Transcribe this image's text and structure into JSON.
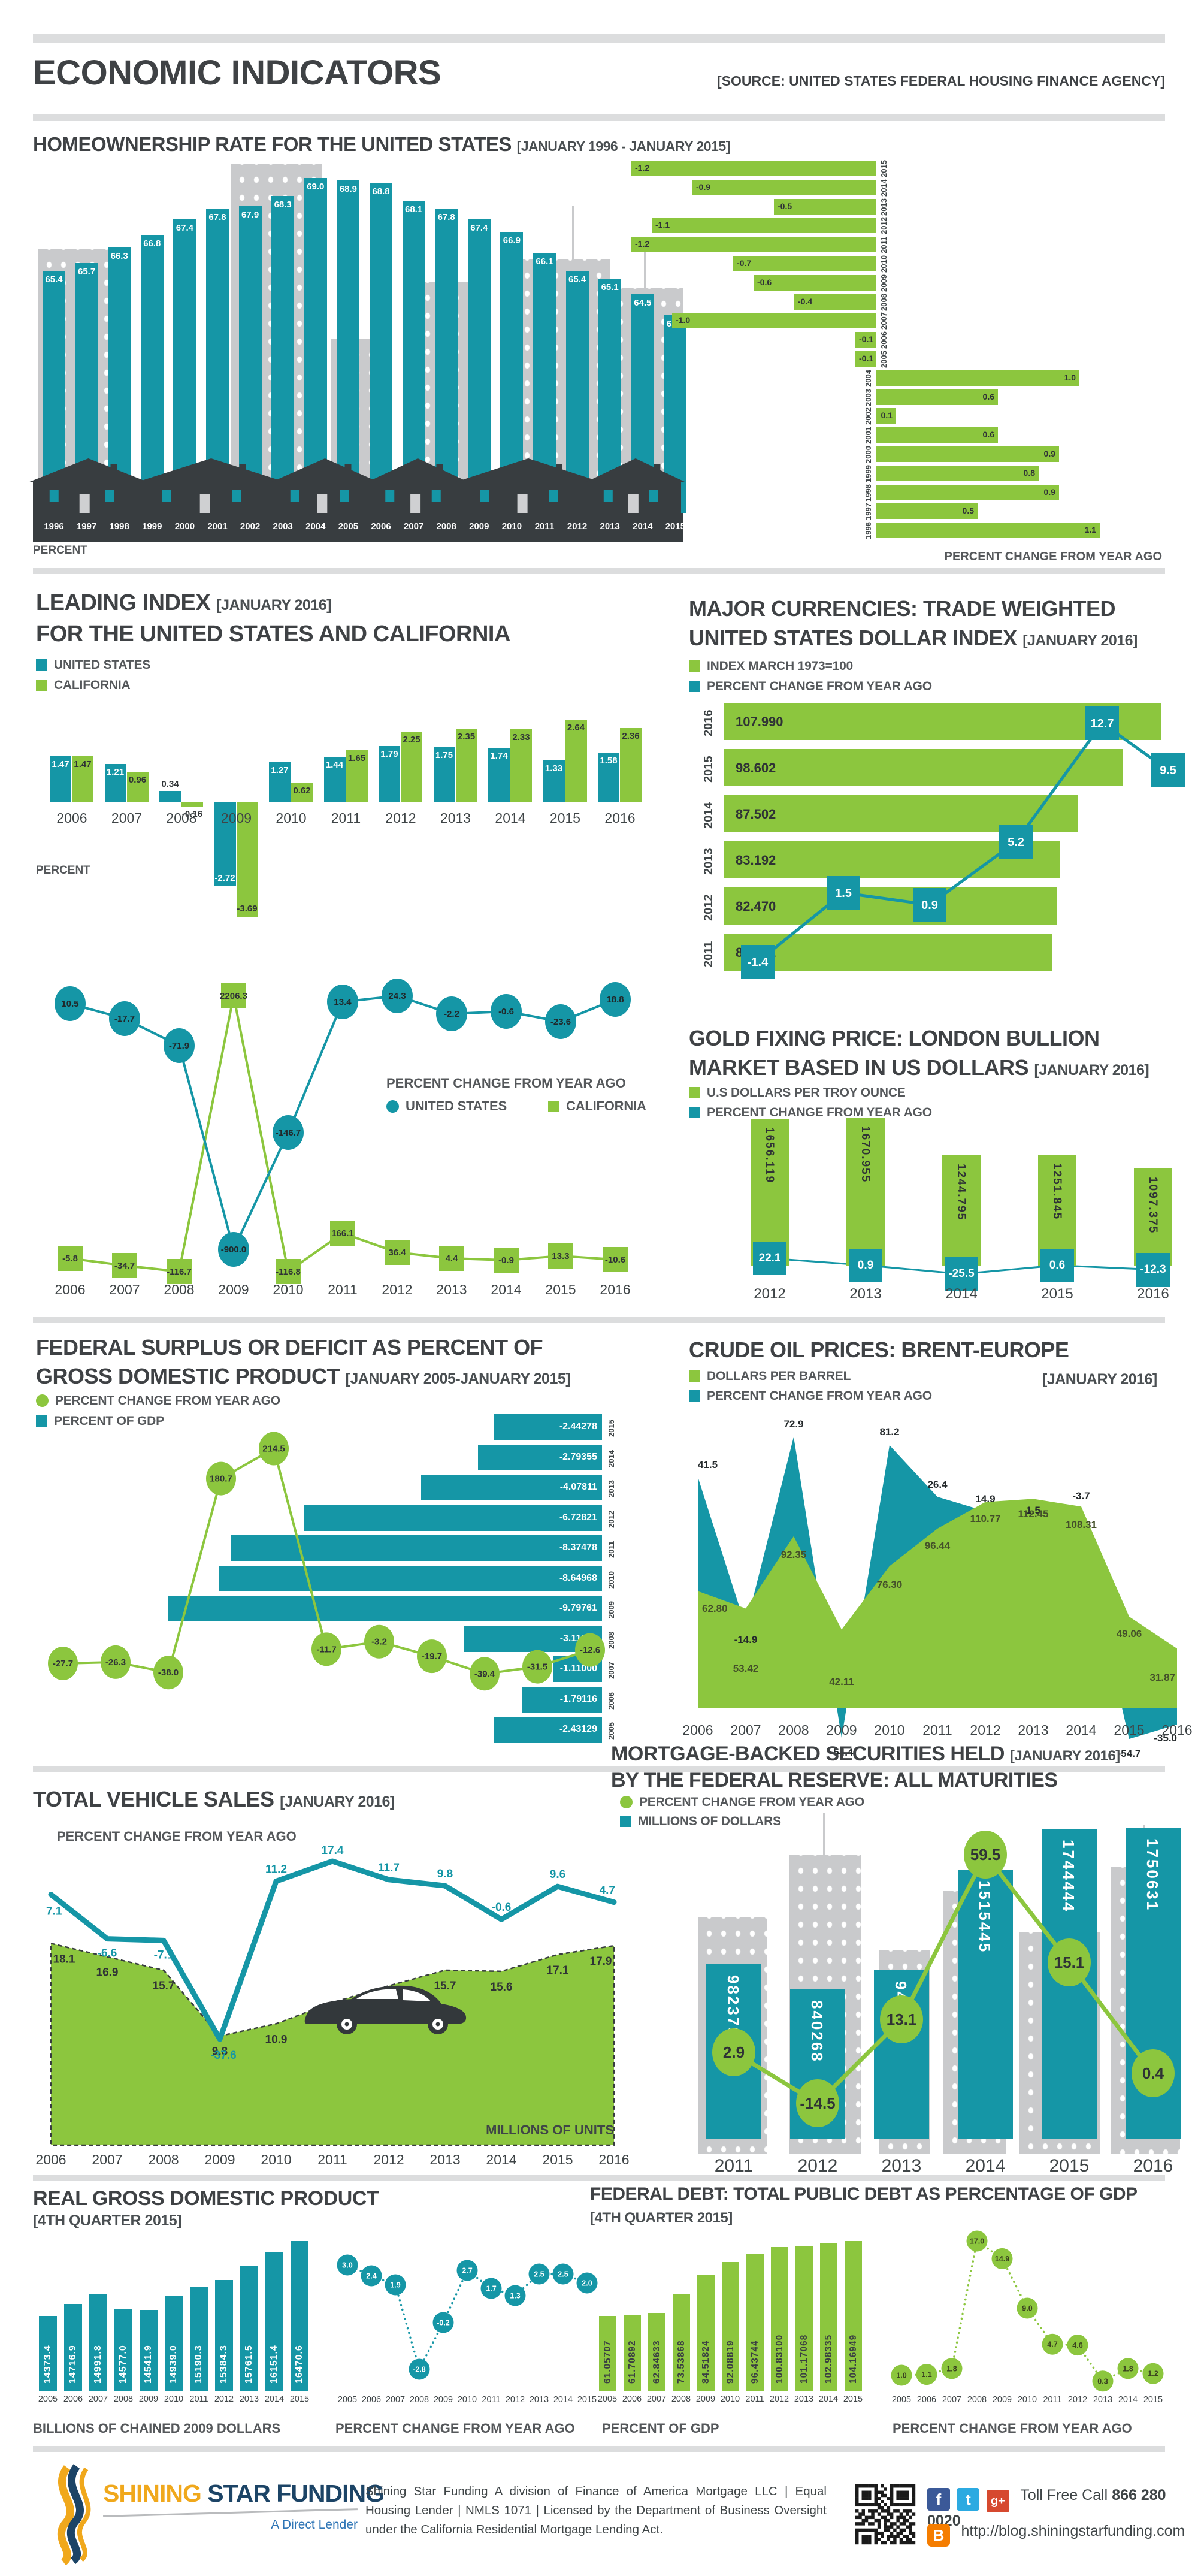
{
  "header": {
    "title": "ECONOMIC INDICATORS",
    "source": "[SOURCE: UNITED STATES FEDERAL HOUSING FINANCE AGENCY]"
  },
  "sections": {
    "homeownership": {
      "title": "HOMEOWNERSHIP RATE FOR THE UNITED STATES",
      "period": "[JANUARY 1996 - JANUARY 2015]",
      "left_axis_label": "PERCENT",
      "right_caption": "PERCENT CHANGE FROM YEAR AGO"
    },
    "leading_index": {
      "title": "LEADING INDEX",
      "period": "[JANUARY 2016]",
      "title2": "FOR THE UNITED STATES AND CALIFORNIA",
      "legend": [
        "UNITED STATES",
        "CALIFORNIA"
      ],
      "axis_label": "PERCENT",
      "line_caption": "PERCENT CHANGE FROM YEAR AGO"
    },
    "major_currencies": {
      "title": "MAJOR CURRENCIES: TRADE WEIGHTED",
      "title2": "UNITED STATES DOLLAR INDEX",
      "period": "[JANUARY 2016]",
      "legend": [
        "INDEX MARCH 1973=100",
        "PERCENT CHANGE FROM YEAR AGO"
      ]
    },
    "gold": {
      "title": "GOLD FIXING PRICE: LONDON BULLION",
      "title2": "MARKET BASED IN US DOLLARS",
      "period": "[JANUARY 2016]",
      "legend": [
        "U.S DOLLARS PER TROY OUNCE",
        "PERCENT CHANGE FROM YEAR AGO"
      ]
    },
    "federal_surplus": {
      "title": "FEDERAL SURPLUS OR DEFICIT AS PERCENT OF",
      "title2": "GROSS DOMESTIC PRODUCT",
      "period": "[JANUARY 2005-JANUARY 2015]",
      "legend": [
        "PERCENT CHANGE FROM YEAR AGO",
        "PERCENT OF GDP"
      ]
    },
    "crude_oil": {
      "title": "CRUDE OIL PRICES: BRENT-EUROPE",
      "period": "[JANUARY 2016]",
      "legend": [
        "DOLLARS PER BARREL",
        "PERCENT CHANGE FROM YEAR AGO"
      ]
    },
    "vehicle_sales": {
      "title": "TOTAL VEHICLE SALES",
      "period": "[JANUARY 2016]",
      "line_label": "PERCENT CHANGE FROM YEAR AGO",
      "area_label": "MILLIONS OF UNITS"
    },
    "mbs": {
      "title": "MORTGAGE-BACKED SECURITIES HELD",
      "period": "[JANUARY 2016]",
      "title2": "BY THE FEDERAL RESERVE: ALL MATURITIES",
      "legend": [
        "PERCENT CHANGE FROM YEAR AGO",
        "MILLIONS OF DOLLARS"
      ]
    },
    "real_gdp": {
      "title": "REAL GROSS DOMESTIC PRODUCT",
      "period": "[4TH QUARTER 2015]",
      "bar_caption": "BILLIONS OF CHAINED 2009 DOLLARS",
      "line_caption": "PERCENT CHANGE FROM YEAR AGO"
    },
    "federal_debt": {
      "title": "FEDERAL DEBT: TOTAL PUBLIC DEBT AS PERCENTAGE OF GDP",
      "period": "[4TH QUARTER 2015]",
      "bar_caption": "PERCENT OF GDP",
      "line_caption": "PERCENT CHANGE FROM YEAR AGO"
    }
  },
  "footer": {
    "brand_1": "SHINING",
    "brand_2": "STAR FUNDING",
    "tagline": "A Direct Lender",
    "disclaimer": "Shining Star Funding A division of Finance of America Mortgage LLC | Equal Housing Lender | NMLS 1071 | Licensed by the Department of Business Oversight under the California Residential Mortgage Lending Act.",
    "toll_free_label": "Toll Free Call",
    "phone": "866 280 0020",
    "blog_url": "http://blog.shiningstarfunding.com",
    "social": [
      "facebook",
      "twitter",
      "google-plus",
      "blogger"
    ]
  },
  "colors": {
    "teal": "#1596A6",
    "green": "#8CC63E",
    "dark": "#383D40",
    "building_gray": "#C9CACC",
    "title_gray": "#3F4245",
    "navy": "#1C4466",
    "gold": "#F0A81C"
  },
  "chart_data": [
    {
      "id": "homeownership_rate",
      "type": "bar",
      "title": "HOMEOWNERSHIP RATE FOR THE UNITED STATES",
      "ylabel": "PERCENT",
      "categories": [
        1996,
        1997,
        1998,
        1999,
        2000,
        2001,
        2002,
        2003,
        2004,
        2005,
        2006,
        2007,
        2008,
        2009,
        2010,
        2011,
        2012,
        2013,
        2014,
        2015
      ],
      "values": [
        65.4,
        65.7,
        66.3,
        66.8,
        67.4,
        67.8,
        67.9,
        68.3,
        69.0,
        68.9,
        68.8,
        68.1,
        67.8,
        67.4,
        66.9,
        66.1,
        65.4,
        65.1,
        64.5,
        63.7
      ]
    },
    {
      "id": "homeownership_change",
      "type": "bar",
      "title": "PERCENT CHANGE FROM YEAR AGO",
      "categories": [
        2015,
        2014,
        2013,
        2012,
        2011,
        2010,
        2009,
        2008,
        2007,
        2006,
        2005,
        2004,
        2003,
        2002,
        2001,
        2000,
        1999,
        1998,
        1997,
        1996
      ],
      "values": [
        -1.2,
        -0.9,
        -0.5,
        -1.1,
        -1.2,
        -0.7,
        -0.6,
        -0.4,
        -1.0,
        -0.1,
        -0.1,
        1.0,
        0.6,
        0.1,
        0.6,
        0.9,
        0.8,
        0.9,
        0.5,
        1.1
      ]
    },
    {
      "id": "leading_index",
      "type": "bar",
      "title": "LEADING INDEX FOR THE UNITED STATES AND CALIFORNIA",
      "ylabel": "PERCENT",
      "categories": [
        2006,
        2007,
        2008,
        2009,
        2010,
        2011,
        2012,
        2013,
        2014,
        2015,
        2016
      ],
      "series": [
        {
          "name": "UNITED STATES",
          "type": "bar",
          "values": [
            1.47,
            1.21,
            0.34,
            -2.72,
            1.27,
            1.44,
            1.79,
            1.75,
            1.74,
            1.33,
            1.58
          ]
        },
        {
          "name": "CALIFORNIA",
          "type": "bar",
          "values": [
            1.47,
            0.96,
            -0.16,
            -3.69,
            0.62,
            1.65,
            2.25,
            2.35,
            2.33,
            2.64,
            2.36
          ]
        },
        {
          "name": "UNITED STATES",
          "type": "line",
          "values": [
            10.5,
            -17.7,
            -71.9,
            -900.0,
            -146.7,
            13.4,
            24.3,
            -2.2,
            -0.6,
            -23.6,
            18.8
          ]
        },
        {
          "name": "CALIFORNIA",
          "type": "line",
          "values": [
            -5.8,
            -34.7,
            -116.7,
            2206.3,
            -116.8,
            166.1,
            36.4,
            4.4,
            -0.9,
            13.3,
            -10.6
          ]
        }
      ]
    },
    {
      "id": "usd_index",
      "type": "bar",
      "title": "MAJOR CURRENCIES: TRADE WEIGHTED UNITED STATES DOLLAR INDEX",
      "categories": [
        2011,
        2012,
        2013,
        2014,
        2015,
        2016
      ],
      "bars": {
        "name": "INDEX MARCH 1973=100",
        "values": [
          81.242,
          82.47,
          83.192,
          87.502,
          98.602,
          107.99
        ],
        "display": [
          "81.242",
          "82.470",
          "83.192",
          "87.502",
          "98.602",
          "107.990"
        ]
      },
      "line": {
        "name": "PERCENT CHANGE FROM YEAR AGO",
        "values": [
          -1.4,
          1.5,
          0.9,
          5.2,
          12.7,
          9.5
        ]
      }
    },
    {
      "id": "gold",
      "type": "bar",
      "title": "GOLD FIXING PRICE: LONDON BULLION MARKET BASED IN US DOLLARS",
      "categories": [
        2012,
        2013,
        2014,
        2015,
        2016
      ],
      "bars": {
        "name": "U.S DOLLARS PER TROY OUNCE",
        "values": [
          1656.119,
          1670.955,
          1244.795,
          1251.845,
          1097.375
        ]
      },
      "line": {
        "name": "PERCENT CHANGE FROM YEAR AGO",
        "values": [
          22.1,
          0.9,
          -25.5,
          0.6,
          -12.3
        ]
      }
    },
    {
      "id": "federal_surplus",
      "type": "bar",
      "title": "FEDERAL SURPLUS OR DEFICIT AS PERCENT OF GROSS DOMESTIC PRODUCT",
      "categories": [
        2005,
        2006,
        2007,
        2008,
        2009,
        2010,
        2011,
        2012,
        2013,
        2014,
        2015
      ],
      "bars": {
        "name": "PERCENT OF GDP",
        "values": [
          -2.43129,
          -1.79116,
          -1.11,
          -3.11547,
          -9.79761,
          -8.64968,
          -8.37478,
          -6.72821,
          -4.07811,
          -2.79355,
          -2.44278
        ],
        "display": [
          "-2.43129",
          "-1.79116",
          "-1.11000",
          "-3.11547",
          "-9.79761",
          "-8.64968",
          "-8.37478",
          "-6.72821",
          "-4.07811",
          "-2.79355",
          "-2.44278"
        ]
      },
      "line": {
        "name": "PERCENT CHANGE FROM YEAR AGO",
        "values": [
          -27.7,
          -26.3,
          -38.0,
          180.7,
          214.5,
          -11.7,
          -3.2,
          -19.7,
          -39.4,
          -31.5,
          -12.6
        ]
      }
    },
    {
      "id": "crude_oil",
      "type": "area",
      "title": "CRUDE OIL PRICES: BRENT-EUROPE",
      "categories": [
        2006,
        2007,
        2008,
        2009,
        2010,
        2011,
        2012,
        2013,
        2014,
        2015,
        2016
      ],
      "series": [
        {
          "name": "DOLLARS PER BARREL",
          "values": [
            62.8,
            53.42,
            92.35,
            42.11,
            76.3,
            96.44,
            110.77,
            112.45,
            108.31,
            49.06,
            31.87
          ],
          "display": [
            "62.80",
            "53.42",
            "92.35",
            "42.11",
            "76.30",
            "96.44",
            "110.77",
            "112.45",
            "108.31",
            "49.06",
            "31.87"
          ]
        },
        {
          "name": "PERCENT CHANGE FROM YEAR AGO",
          "values": [
            41.5,
            -14.9,
            72.9,
            -54.4,
            81.2,
            26.4,
            14.9,
            1.5,
            -3.7,
            -54.7,
            -35.0
          ]
        }
      ]
    },
    {
      "id": "vehicle_sales",
      "type": "area",
      "title": "TOTAL VEHICLE SALES",
      "categories": [
        2006,
        2007,
        2008,
        2009,
        2010,
        2011,
        2012,
        2013,
        2014,
        2015,
        2016
      ],
      "series": [
        {
          "name": "PERCENT CHANGE FROM YEAR AGO",
          "type": "line",
          "values": [
            7.1,
            -6.6,
            -7.1,
            -37.6,
            11.2,
            17.4,
            11.7,
            9.8,
            -0.6,
            9.6,
            4.7
          ]
        },
        {
          "name": "MILLIONS OF UNITS",
          "type": "area",
          "values": [
            18.1,
            16.9,
            15.7,
            9.8,
            10.9,
            12.8,
            14.3,
            15.7,
            15.6,
            17.1,
            17.9
          ]
        }
      ]
    },
    {
      "id": "mbs",
      "type": "bar",
      "title": "MORTGAGE-BACKED SECURITIES HELD BY THE FEDERAL RESERVE: ALL MATURITIES",
      "categories": [
        2011,
        2012,
        2013,
        2014,
        2015,
        2016
      ],
      "bars": {
        "name": "MILLIONS OF DOLLARS",
        "values": [
          982379,
          840268,
          949994,
          1515445,
          1744444,
          1750631
        ]
      },
      "line": {
        "name": "PERCENT CHANGE FROM YEAR AGO",
        "values": [
          2.9,
          -14.5,
          13.1,
          59.5,
          15.1,
          0.4
        ]
      }
    },
    {
      "id": "real_gdp",
      "type": "bar",
      "title": "REAL GROSS DOMESTIC PRODUCT",
      "categories": [
        2005,
        2006,
        2007,
        2008,
        2009,
        2010,
        2011,
        2012,
        2013,
        2014,
        2015
      ],
      "bars": {
        "name": "BILLIONS OF CHAINED 2009 DOLLARS",
        "values": [
          14373.4,
          14716.9,
          14991.8,
          14577.0,
          14541.9,
          14939.0,
          15190.3,
          15384.3,
          15761.5,
          16151.4,
          16470.6
        ]
      },
      "line": {
        "name": "PERCENT CHANGE FROM YEAR AGO",
        "values": [
          3.0,
          2.4,
          1.9,
          -2.8,
          -0.2,
          2.7,
          1.7,
          1.3,
          2.5,
          2.5,
          2.0
        ]
      }
    },
    {
      "id": "federal_debt",
      "type": "bar",
      "title": "FEDERAL DEBT: TOTAL PUBLIC DEBT AS PERCENTAGE OF GDP",
      "categories": [
        2005,
        2006,
        2007,
        2008,
        2009,
        2010,
        2011,
        2012,
        2013,
        2014,
        2015
      ],
      "bars": {
        "name": "PERCENT OF GDP",
        "values": [
          61.05707,
          61.70892,
          62.84633,
          73.53868,
          84.51824,
          92.08819,
          96.43744,
          100.831,
          101.17068,
          102.98335,
          104.16949
        ],
        "display": [
          "61.05707",
          "61.70892",
          "62.84633",
          "73.53868",
          "84.51824",
          "92.08819",
          "96.43744",
          "100.83100",
          "101.17068",
          "102.98335",
          "104.16949"
        ]
      },
      "line": {
        "name": "PERCENT CHANGE FROM YEAR AGO",
        "values": [
          1.0,
          1.1,
          1.8,
          17.0,
          14.9,
          9.0,
          4.7,
          4.6,
          0.3,
          1.8,
          1.2
        ]
      }
    }
  ]
}
